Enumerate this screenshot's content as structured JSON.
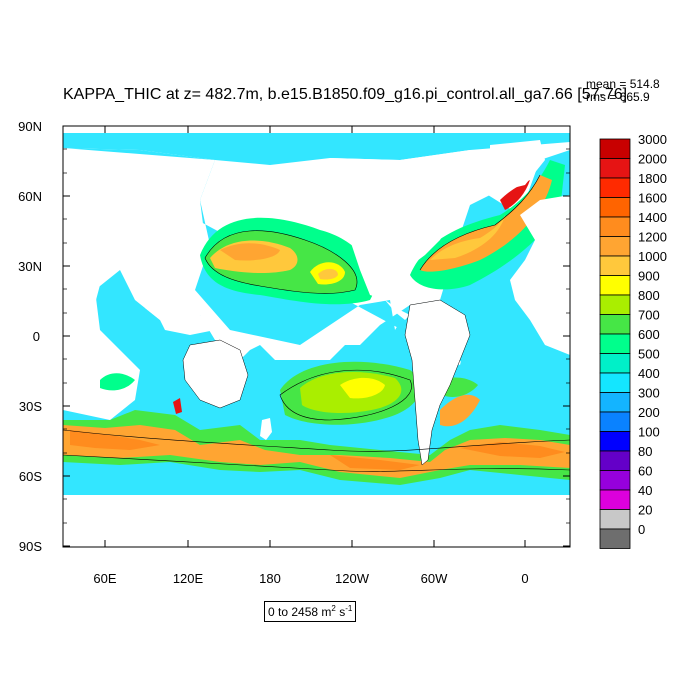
{
  "title": "KAPPA_THIC at z= 482.7m, b.e15.B1850.f09_g16.pi_control.all_ga7.66 [57-76]",
  "stats": {
    "mean": "mean = 514.8",
    "rms": "rms = 665.9"
  },
  "map": {
    "lat_labels": [
      "90N",
      "60N",
      "30N",
      "0",
      "30S",
      "60S",
      "90S"
    ],
    "lon_labels": [
      "60E",
      "120E",
      "180",
      "120W",
      "60W",
      "0"
    ],
    "land_color": "#ffffff",
    "ocean_base_color": "#33e6ff"
  },
  "colorbar": {
    "labels": [
      "3000",
      "2000",
      "1800",
      "1600",
      "1400",
      "1200",
      "1000",
      "900",
      "800",
      "700",
      "600",
      "500",
      "400",
      "300",
      "200",
      "100",
      "80",
      "60",
      "40",
      "20",
      "0"
    ],
    "colors": [
      "#c80000",
      "#e61414",
      "#ff2a00",
      "#ff6400",
      "#ff8c1e",
      "#ffa532",
      "#ffc83c",
      "#ffff00",
      "#aaee00",
      "#46e646",
      "#00ff8c",
      "#00f0c8",
      "#14e6ff",
      "#14b4ff",
      "#0a82ff",
      "#0000ff",
      "#6400c8",
      "#9600dc",
      "#dc00dc",
      "#c8c8c8",
      "#6e6e6e"
    ]
  },
  "range_label": {
    "text": "0 to 2458",
    "unit": "m",
    "unit_exp": "2",
    "unit_tail": "s",
    "unit_tail_exp": "-1"
  }
}
